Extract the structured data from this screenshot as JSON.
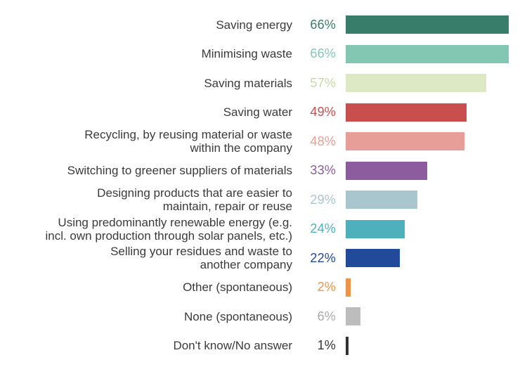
{
  "chart_data": {
    "type": "bar",
    "orientation": "horizontal",
    "title": "",
    "xlabel": "",
    "ylabel": "",
    "xlim": [
      0,
      66
    ],
    "grid": false,
    "categories": [
      "Saving energy",
      "Minimising waste",
      "Saving materials",
      "Saving water",
      "Recycling, by reusing material or waste\nwithin the company",
      "Switching to greener suppliers of materials",
      "Designing products that are easier to\nmaintain, repair or reuse",
      "Using predominantly renewable energy (e.g.\nincl. own production through solar panels, etc.)",
      "Selling your residues and waste to\nanother company",
      "Other (spontaneous)",
      "None (spontaneous)",
      "Don't know/No answer"
    ],
    "values": [
      66,
      66,
      57,
      49,
      48,
      33,
      29,
      24,
      22,
      2,
      6,
      1
    ],
    "value_labels": [
      "66%",
      "66%",
      "57%",
      "49%",
      "48%",
      "33%",
      "29%",
      "24%",
      "22%",
      "2%",
      "6%",
      "1%"
    ],
    "colors": [
      "#377d6a",
      "#83c7b3",
      "#dde8c4",
      "#c94f4f",
      "#e79d98",
      "#8c5c9e",
      "#a9c6ce",
      "#4eb0bb",
      "#224a9a",
      "#e9954c",
      "#bdbdbd",
      "#333333"
    ]
  }
}
